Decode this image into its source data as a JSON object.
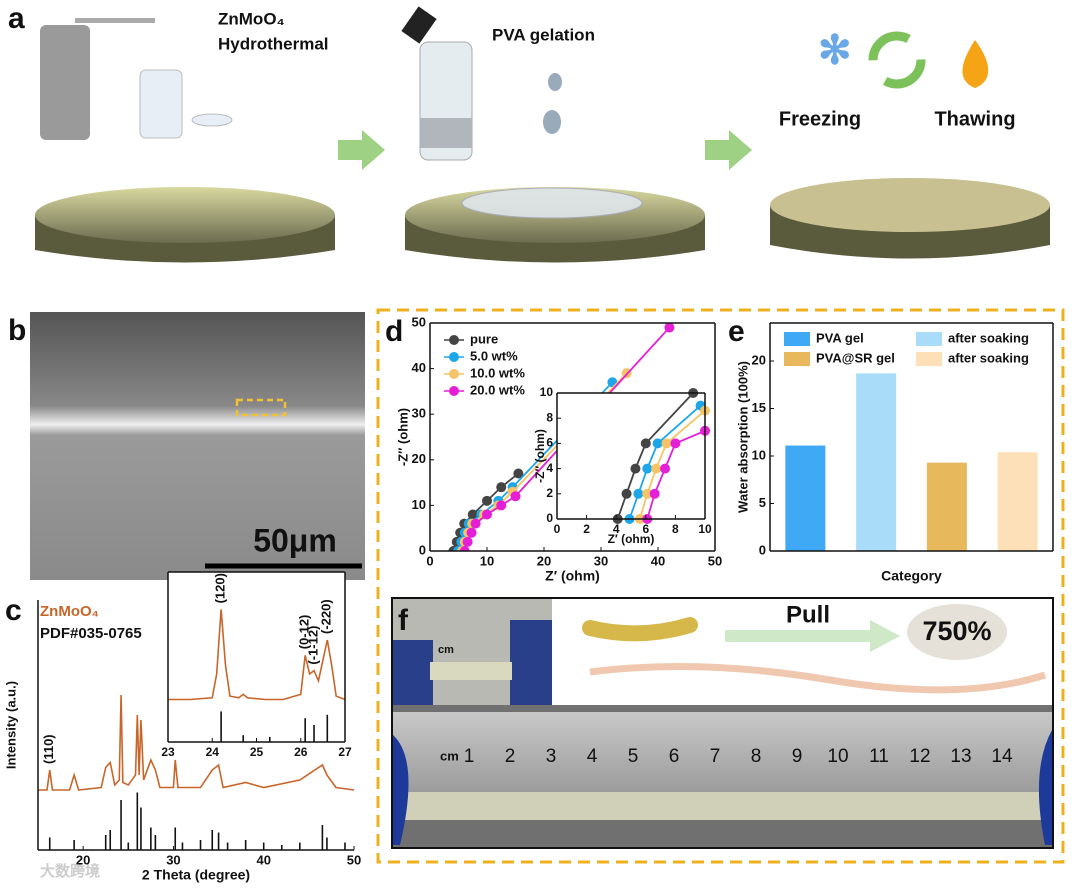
{
  "panel_a": {
    "label": "a",
    "material": "ZnMoO₄",
    "method": "Hydrothermal",
    "gelation": "PVA gelation",
    "freezing": "Freezing",
    "thawing": "Thawing"
  },
  "panel_b": {
    "label": "b",
    "scale_bar": "50μm"
  },
  "panel_f": {
    "label": "f",
    "pull": "Pull",
    "strain": "750%",
    "ruler_unit": "cm",
    "ruler_numbers": [
      "1",
      "2",
      "3",
      "4",
      "5",
      "6",
      "7",
      "8",
      "9",
      "10",
      "11",
      "12",
      "13",
      "14"
    ]
  },
  "watermark": "大数跨境",
  "chart_data": [
    {
      "type": "line",
      "panel_label": "c",
      "xlabel": "2 Theta (degree)",
      "ylabel": "Intensity (a.u.)",
      "xlim": [
        15,
        50
      ],
      "ylim": [
        0,
        100
      ],
      "xticks": [
        20,
        30,
        40,
        50
      ],
      "series": [
        {
          "name": "ZnMoO₄",
          "color": "#c8662a",
          "mark": "line",
          "x": [
            15,
            16,
            16.3,
            16.6,
            18.5,
            19,
            19.5,
            22,
            22.5,
            23,
            23.5,
            24,
            24.2,
            24.4,
            25,
            25.8,
            26,
            26.2,
            26.4,
            26.7,
            27.5,
            28,
            28.5,
            30,
            30.2,
            30.5,
            33,
            34.3,
            35,
            35.5,
            38,
            40,
            44,
            46.5,
            47,
            48,
            50
          ],
          "values": [
            24,
            24,
            32,
            24,
            24,
            30,
            24,
            25,
            33,
            35,
            26,
            28,
            62,
            27,
            26,
            30,
            54,
            30,
            52,
            28,
            36,
            32,
            25,
            25,
            36,
            25,
            25,
            32,
            34,
            25,
            27,
            25,
            28,
            34,
            30,
            25,
            24
          ]
        },
        {
          "name": "PDF#035-0765",
          "color": "#111111",
          "mark": "stick",
          "x": [
            16.3,
            19,
            22.5,
            23,
            24.2,
            25,
            26,
            26.4,
            27.5,
            28,
            30.2,
            31,
            33,
            34.3,
            35,
            36,
            38,
            40,
            42,
            44,
            46.5,
            47,
            49
          ],
          "values": [
            5,
            4,
            6,
            8,
            20,
            3,
            23,
            17,
            9,
            6,
            9,
            3,
            4,
            8,
            7,
            3,
            4,
            3,
            2,
            3,
            10,
            5,
            3
          ]
        }
      ],
      "annotations": [
        {
          "text": "(110)",
          "x": 16.3
        }
      ]
    },
    {
      "type": "line",
      "xlim": [
        23,
        27
      ],
      "ylim": [
        0,
        100
      ],
      "xticks": [
        23,
        24,
        25,
        26,
        27
      ],
      "series": [
        {
          "color": "#c8662a",
          "mark": "line",
          "x": [
            23,
            23.5,
            24,
            24.1,
            24.2,
            24.3,
            24.4,
            24.6,
            24.7,
            24.8,
            25.2,
            25.6,
            26,
            26.1,
            26.2,
            26.3,
            26.4,
            26.5,
            26.6,
            26.7,
            26.8,
            27
          ],
          "values": [
            25,
            25,
            26,
            40,
            78,
            45,
            27,
            26,
            28,
            26,
            25,
            25,
            28,
            51,
            40,
            42,
            36,
            48,
            60,
            45,
            27,
            25
          ]
        },
        {
          "color": "#111111",
          "mark": "stick",
          "x": [
            24.2,
            24.7,
            25.3,
            26.1,
            26.3,
            26.6
          ],
          "values": [
            18,
            4,
            3,
            14,
            10,
            16
          ]
        }
      ],
      "annotations": [
        {
          "text": "(120)",
          "x": 24.2
        },
        {
          "text": "(0-12)",
          "x": 26.1
        },
        {
          "text": "(-1-12)",
          "x": 26.3
        },
        {
          "text": "(-220)",
          "x": 26.6
        }
      ]
    },
    {
      "type": "scatter",
      "panel_label": "d",
      "xlabel": "Z′ (ohm)",
      "ylabel": "-Z′′ (ohm)",
      "line": true,
      "xlim": [
        0,
        50
      ],
      "ylim": [
        0,
        50
      ],
      "xticks": [
        0,
        10,
        20,
        30,
        40,
        50
      ],
      "yticks": [
        0,
        10,
        20,
        30,
        40,
        50
      ],
      "series": [
        {
          "name": "pure",
          "color": "#444444",
          "x": [
            4.1,
            4.7,
            5.3,
            6.0,
            7.5,
            10,
            12.5,
            15.5
          ],
          "values": [
            0,
            2,
            4,
            6,
            8,
            11,
            14,
            17
          ]
        },
        {
          "name": "5.0 wt%",
          "color": "#1ea7e8",
          "x": [
            4.9,
            5.5,
            6.1,
            6.8,
            9,
            12,
            14.5,
            32
          ],
          "values": [
            0,
            2,
            4,
            6,
            8,
            11,
            14,
            37
          ]
        },
        {
          "name": "10.0 wt%",
          "color": "#f5c466",
          "x": [
            5.6,
            6.1,
            6.7,
            7.4,
            9.5,
            12,
            14.5,
            34.5
          ],
          "values": [
            0,
            2,
            4,
            6,
            8,
            10,
            13,
            39
          ]
        },
        {
          "name": "20.0 wt%",
          "color": "#e51fd6",
          "x": [
            6.1,
            6.6,
            7.3,
            8,
            10,
            12.5,
            15,
            42
          ],
          "values": [
            0,
            2,
            4,
            6,
            8,
            10,
            12,
            49
          ]
        }
      ]
    },
    {
      "type": "scatter",
      "xlabel": "Z′ (ohm)",
      "ylabel": "-Z′′ (ohm)",
      "line": true,
      "xlim": [
        0,
        10
      ],
      "ylim": [
        0,
        10
      ],
      "xticks": [
        0,
        2,
        4,
        6,
        8,
        10
      ],
      "yticks": [
        0,
        2,
        4,
        6,
        8,
        10
      ],
      "series": [
        {
          "color": "#444444",
          "x": [
            4.1,
            4.7,
            5.3,
            6.0,
            9.2
          ],
          "values": [
            0,
            2,
            4,
            6,
            10
          ]
        },
        {
          "color": "#1ea7e8",
          "x": [
            4.9,
            5.5,
            6.1,
            6.8,
            9.7
          ],
          "values": [
            0,
            2,
            4,
            6,
            9
          ]
        },
        {
          "color": "#f5c466",
          "x": [
            5.6,
            6.1,
            6.7,
            7.4,
            10
          ],
          "values": [
            0,
            2,
            4,
            6,
            8.6
          ]
        },
        {
          "color": "#e51fd6",
          "x": [
            6.1,
            6.6,
            7.3,
            8.0,
            10
          ],
          "values": [
            0,
            2,
            4,
            6,
            7
          ]
        }
      ]
    },
    {
      "type": "bar",
      "panel_label": "e",
      "xlabel": "Category",
      "ylabel": "Water absorption (100%)",
      "ylim": [
        0,
        24
      ],
      "yticks": [
        0,
        5,
        10,
        15,
        20
      ],
      "categories": [
        null
      ],
      "series": [
        {
          "name": "PVA gel",
          "color": "#3fa9f5",
          "values": [
            11.1
          ]
        },
        {
          "name": "after soaking",
          "color": "#a8dcf8",
          "values": [
            18.7
          ]
        },
        {
          "name": "PVA@SR gel",
          "color": "#e8b85c",
          "values": [
            9.3
          ]
        },
        {
          "name": "after soaking",
          "color": "#fde0b8",
          "values": [
            10.4
          ]
        }
      ]
    }
  ]
}
